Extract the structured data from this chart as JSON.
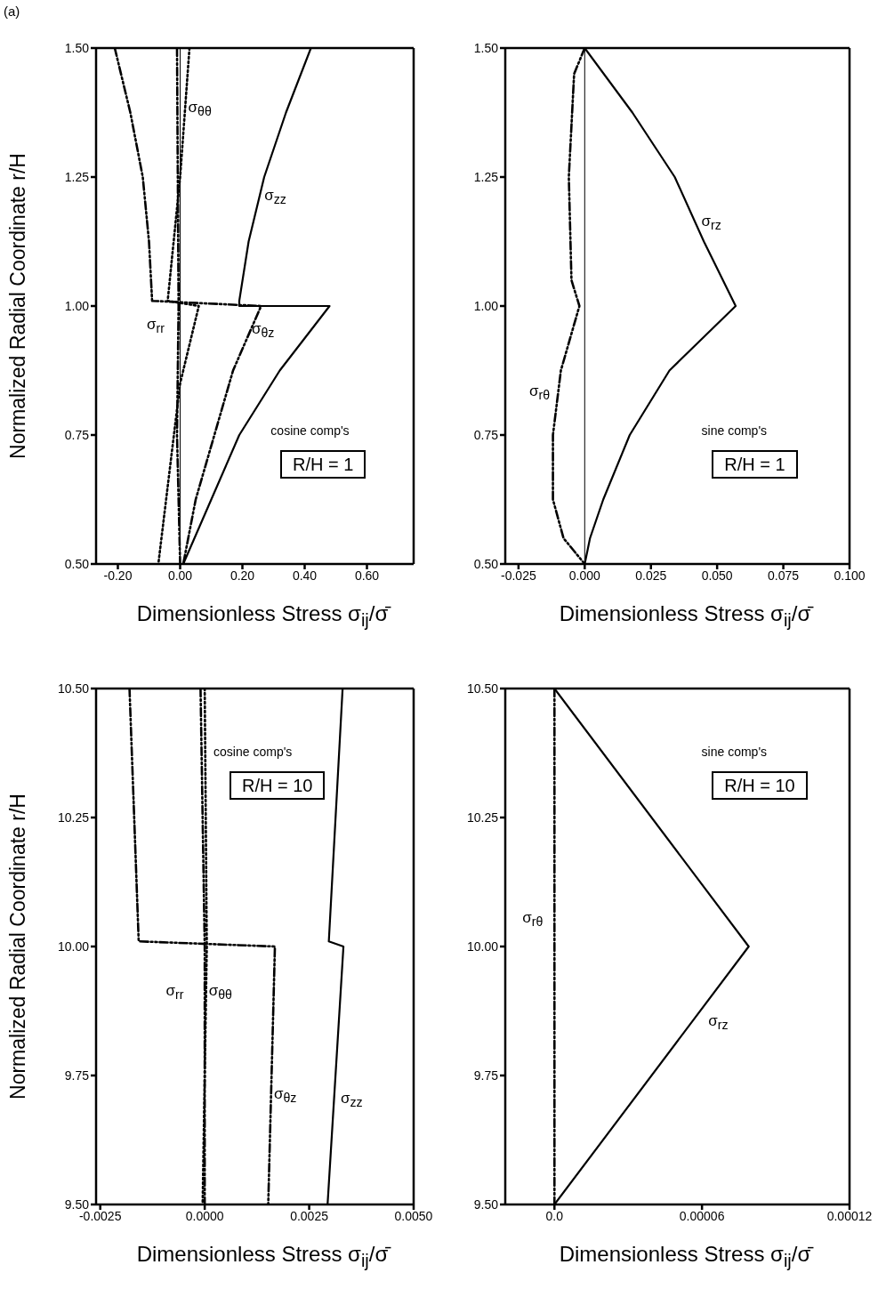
{
  "chart_data": [
    {
      "type": "line",
      "title": "(a)",
      "xlabel": "Dimensionless Stress σ$_{ij}$/σ̄",
      "ylabel": "Normalized Radial Coordinate r/H",
      "xlim": [
        -0.27,
        0.75
      ],
      "ylim": [
        0.5,
        1.5
      ],
      "xticks": [
        {
          "value": -0.2,
          "label": "-0.20"
        },
        {
          "value": 0,
          "label": "0.00"
        },
        {
          "value": 0.2,
          "label": "0.20"
        },
        {
          "value": 0.4,
          "label": "0.40"
        },
        {
          "value": 0.6,
          "label": "0.60"
        }
      ],
      "yticks": [
        {
          "value": 0.5,
          "label": "0.50"
        },
        {
          "value": 0.75,
          "label": "0.75"
        },
        {
          "value": 1,
          "label": "1.00"
        },
        {
          "value": 1.25,
          "label": "1.25"
        },
        {
          "value": 1.5,
          "label": "1.50"
        }
      ],
      "marker": "none",
      "ref_lines": [
        {
          "axis": "x",
          "value": 0,
          "color": "#000000",
          "line_style": "solid"
        }
      ],
      "series": [
        {
          "color": "#000000",
          "line_style": "solid",
          "x": [
            0.42,
            0.34,
            0.27,
            0.22,
            0.19,
            0.19,
            0.48,
            0.32,
            0.19,
            0.1,
            0.01
          ],
          "values": [
            1.5,
            1.375,
            1.25,
            1.125,
            1.01,
            1.0,
            1.0,
            0.875,
            0.75,
            0.625,
            0.5
          ]
        },
        {
          "color": "#000000",
          "line_style": "dotted",
          "x": [
            0.03,
            0.0,
            -0.04,
            0.06,
            0.0,
            -0.07
          ],
          "values": [
            1.5,
            1.25,
            1.01,
            1.0,
            0.85,
            0.5
          ]
        },
        {
          "color": "#000000",
          "line_style": "dashed",
          "x": [
            -0.01,
            -0.005,
            -0.01,
            0.0
          ],
          "values": [
            1.5,
            1.0,
            0.75,
            0.5
          ]
        },
        {
          "color": "#000000",
          "line_style": "dashed",
          "x": [
            -0.21,
            -0.16,
            -0.12,
            -0.1,
            -0.09,
            0.26,
            0.17,
            0.11,
            0.05,
            0.01
          ],
          "values": [
            1.5,
            1.375,
            1.25,
            1.125,
            1.01,
            1.0,
            0.875,
            0.75,
            0.625,
            0.5
          ]
        }
      ],
      "annotations": [
        "cosine comp's",
        "R/H = 1",
        "σ$_{θθ}$",
        "σ$_{zz}$",
        "σ$_{rr}$",
        "σ$_{θz}$"
      ]
    },
    {
      "type": "line",
      "xlabel": "Dimensionless Stress σ$_{ij}$/σ̄",
      "xlim": [
        -0.03,
        0.1
      ],
      "ylim": [
        0.5,
        1.5
      ],
      "xticks": [
        {
          "value": -0.025,
          "label": "-0.025"
        },
        {
          "value": 0,
          "label": "0.000"
        },
        {
          "value": 0.025,
          "label": "0.025"
        },
        {
          "value": 0.05,
          "label": "0.050"
        },
        {
          "value": 0.075,
          "label": "0.075"
        },
        {
          "value": 0.1,
          "label": "0.100"
        }
      ],
      "yticks": [
        {
          "value": 0.5,
          "label": "0.50"
        },
        {
          "value": 0.75,
          "label": "0.75"
        },
        {
          "value": 1,
          "label": "1.00"
        },
        {
          "value": 1.25,
          "label": "1.25"
        },
        {
          "value": 1.5,
          "label": "1.50"
        }
      ],
      "marker": "none",
      "ref_lines": [
        {
          "axis": "x",
          "value": 0,
          "color": "#000000",
          "line_style": "solid"
        }
      ],
      "series": [
        {
          "color": "#000000",
          "line_style": "solid",
          "x": [
            0,
            0.018,
            0.034,
            0.045,
            0.057,
            0.032,
            0.017,
            0.007,
            0.002,
            0
          ],
          "values": [
            1.5,
            1.375,
            1.25,
            1.125,
            1.0,
            0.875,
            0.75,
            0.625,
            0.55,
            0.5
          ]
        },
        {
          "color": "#000000",
          "line_style": "dashed",
          "x": [
            0,
            -0.004,
            -0.006,
            -0.005,
            -0.002,
            -0.009,
            -0.012,
            -0.012,
            -0.008,
            0
          ],
          "values": [
            1.5,
            1.45,
            1.25,
            1.05,
            1.0,
            0.875,
            0.75,
            0.625,
            0.55,
            0.5
          ]
        }
      ],
      "annotations": [
        "sine comp's",
        "R/H = 1",
        "σ$_{rz}$",
        "σ$_{rθ}$"
      ]
    },
    {
      "type": "line",
      "xlabel": "Dimensionless Stress σ$_{ij}$/σ̄",
      "ylabel": "Normalized Radial Coordinate r/H",
      "xlim": [
        -0.0026,
        0.005
      ],
      "ylim": [
        9.5,
        10.5
      ],
      "xticks": [
        {
          "value": -0.0025,
          "label": "-0.0025"
        },
        {
          "value": 0,
          "label": "0.0000"
        },
        {
          "value": 0.0025,
          "label": "0.0025"
        },
        {
          "value": 0.005,
          "label": "0.0050"
        }
      ],
      "yticks": [
        {
          "value": 9.5,
          "label": "9.50"
        },
        {
          "value": 9.75,
          "label": "9.75"
        },
        {
          "value": 10,
          "label": "10.00"
        },
        {
          "value": 10.25,
          "label": "10.25"
        },
        {
          "value": 10.5,
          "label": "10.50"
        }
      ],
      "marker": "none",
      "series": [
        {
          "color": "#000000",
          "line_style": "solid",
          "x": [
            0.0033,
            0.00297,
            0.00332,
            0.00294
          ],
          "values": [
            10.5,
            10.01,
            10.0,
            9.5
          ]
        },
        {
          "color": "#000000",
          "line_style": "dashed",
          "x": [
            -0.0018,
            -0.00158,
            0.00168,
            0.00152
          ],
          "values": [
            10.5,
            10.01,
            10.0,
            9.5
          ]
        },
        {
          "color": "#000000",
          "line_style": "dashed",
          "x": [
            -0.0001,
            0,
            0
          ],
          "values": [
            10.5,
            10.0,
            9.5
          ]
        },
        {
          "color": "#000000",
          "line_style": "dotted",
          "x": [
            0,
            5e-05,
            -5e-05
          ],
          "values": [
            10.5,
            10.0,
            9.5
          ]
        }
      ],
      "annotations": [
        "cosine comp's",
        "R/H = 10",
        "σ$_{rr}$",
        "σ$_{θθ}$",
        "σ$_{θz}$",
        "σ$_{zz}$"
      ]
    },
    {
      "type": "line",
      "xlabel": "Dimensionless Stress σ$_{ij}$/σ̄",
      "xlim": [
        -2e-05,
        0.00012
      ],
      "ylim": [
        9.5,
        10.5
      ],
      "xticks": [
        {
          "value": 0,
          "label": "0.0"
        },
        {
          "value": 6e-05,
          "label": "0.00006"
        },
        {
          "value": 0.00012,
          "label": "0.00012"
        }
      ],
      "yticks": [
        {
          "value": 9.5,
          "label": "9.50"
        },
        {
          "value": 9.75,
          "label": "9.75"
        },
        {
          "value": 10,
          "label": "10.00"
        },
        {
          "value": 10.25,
          "label": "10.25"
        },
        {
          "value": 10.5,
          "label": "10.50"
        }
      ],
      "marker": "none",
      "series": [
        {
          "color": "#000000",
          "line_style": "solid",
          "x": [
            0,
            7.9e-05,
            0
          ],
          "values": [
            10.5,
            10.0,
            9.5
          ]
        },
        {
          "color": "#000000",
          "line_style": "dashed",
          "x": [
            0,
            0,
            0
          ],
          "values": [
            10.5,
            10.0,
            9.5
          ]
        }
      ],
      "annotations": [
        "sine comp's",
        "R/H = 10",
        "σ$_{rθ}$",
        "σ$_{rz}$"
      ]
    }
  ]
}
